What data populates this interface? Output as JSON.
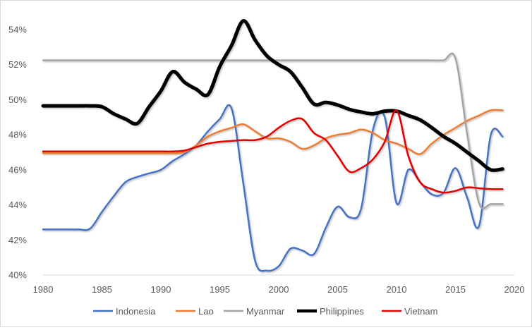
{
  "chart_data": {
    "type": "line",
    "title": "",
    "xlabel": "",
    "ylabel": "",
    "xlim": [
      1980,
      2020
    ],
    "ylim": [
      40,
      54
    ],
    "x_ticks": [
      "1980",
      "1985",
      "1990",
      "1995",
      "2000",
      "2005",
      "2010",
      "2015",
      "2020"
    ],
    "y_ticks": [
      "40%",
      "42%",
      "44%",
      "46%",
      "48%",
      "50%",
      "52%",
      "54%"
    ],
    "grid": false,
    "legend_position": "bottom",
    "x": [
      1980,
      1981,
      1982,
      1983,
      1984,
      1985,
      1986,
      1987,
      1988,
      1989,
      1990,
      1991,
      1992,
      1993,
      1994,
      1995,
      1996,
      1997,
      1998,
      1999,
      2000,
      2001,
      2002,
      2003,
      2004,
      2005,
      2006,
      2007,
      2008,
      2009,
      2010,
      2011,
      2012,
      2013,
      2014,
      2015,
      2016,
      2017,
      2018,
      2019
    ],
    "series": [
      {
        "name": "Indonesia",
        "color": "#4472C4",
        "width": 2.5,
        "values": [
          42.6,
          42.6,
          42.6,
          42.6,
          42.65,
          43.6,
          44.5,
          45.3,
          45.6,
          45.8,
          46.0,
          46.5,
          46.9,
          47.4,
          48.2,
          48.9,
          49.5,
          45.2,
          40.8,
          40.25,
          40.5,
          41.5,
          41.4,
          41.2,
          42.7,
          43.9,
          43.3,
          43.8,
          48.3,
          49.0,
          44.1,
          46.0,
          45.3,
          44.6,
          44.7,
          46.1,
          44.4,
          42.8,
          48.0,
          47.9
        ]
      },
      {
        "name": "Lao",
        "color": "#ED7D31",
        "width": 2.5,
        "values": [
          46.95,
          46.95,
          46.95,
          46.95,
          46.95,
          46.95,
          46.95,
          46.95,
          46.95,
          46.95,
          46.95,
          46.95,
          47.0,
          47.4,
          47.9,
          48.2,
          48.4,
          48.6,
          48.2,
          47.8,
          47.8,
          47.6,
          47.2,
          47.4,
          47.8,
          48.0,
          48.1,
          48.3,
          48.1,
          47.7,
          47.5,
          47.2,
          46.9,
          47.5,
          48.0,
          48.4,
          48.8,
          49.1,
          49.4,
          49.4
        ]
      },
      {
        "name": "Myanmar",
        "color": "#A5A5A5",
        "width": 2.5,
        "values": [
          52.25,
          52.25,
          52.25,
          52.25,
          52.25,
          52.25,
          52.25,
          52.25,
          52.25,
          52.25,
          52.25,
          52.25,
          52.25,
          52.25,
          52.25,
          52.25,
          52.25,
          52.25,
          52.25,
          52.25,
          52.25,
          52.25,
          52.25,
          52.25,
          52.25,
          52.25,
          52.25,
          52.25,
          52.25,
          52.25,
          52.25,
          52.25,
          52.25,
          52.25,
          52.25,
          52.35,
          48.0,
          44.1,
          44.05,
          44.05
        ]
      },
      {
        "name": "Philippines",
        "color": "#000000",
        "width": 5,
        "values": [
          49.65,
          49.65,
          49.65,
          49.65,
          49.65,
          49.6,
          49.2,
          48.9,
          48.65,
          49.6,
          50.5,
          51.6,
          51.0,
          50.6,
          50.3,
          51.9,
          53.1,
          54.5,
          53.4,
          52.5,
          52.0,
          51.6,
          50.7,
          49.75,
          49.85,
          49.7,
          49.45,
          49.3,
          49.2,
          49.35,
          49.35,
          49.1,
          48.85,
          48.4,
          47.9,
          47.5,
          47.0,
          46.5,
          46.0,
          46.05
        ]
      },
      {
        "name": "Vietnam",
        "color": "#E00000",
        "width": 2.5,
        "values": [
          47.05,
          47.05,
          47.05,
          47.05,
          47.05,
          47.05,
          47.05,
          47.05,
          47.05,
          47.05,
          47.05,
          47.05,
          47.1,
          47.3,
          47.5,
          47.6,
          47.65,
          47.7,
          47.7,
          47.9,
          48.4,
          48.8,
          48.9,
          48.1,
          47.7,
          46.8,
          45.9,
          46.1,
          46.6,
          47.6,
          49.4,
          46.8,
          45.3,
          44.9,
          44.7,
          44.8,
          45.0,
          44.95,
          44.9,
          44.9
        ]
      }
    ]
  }
}
